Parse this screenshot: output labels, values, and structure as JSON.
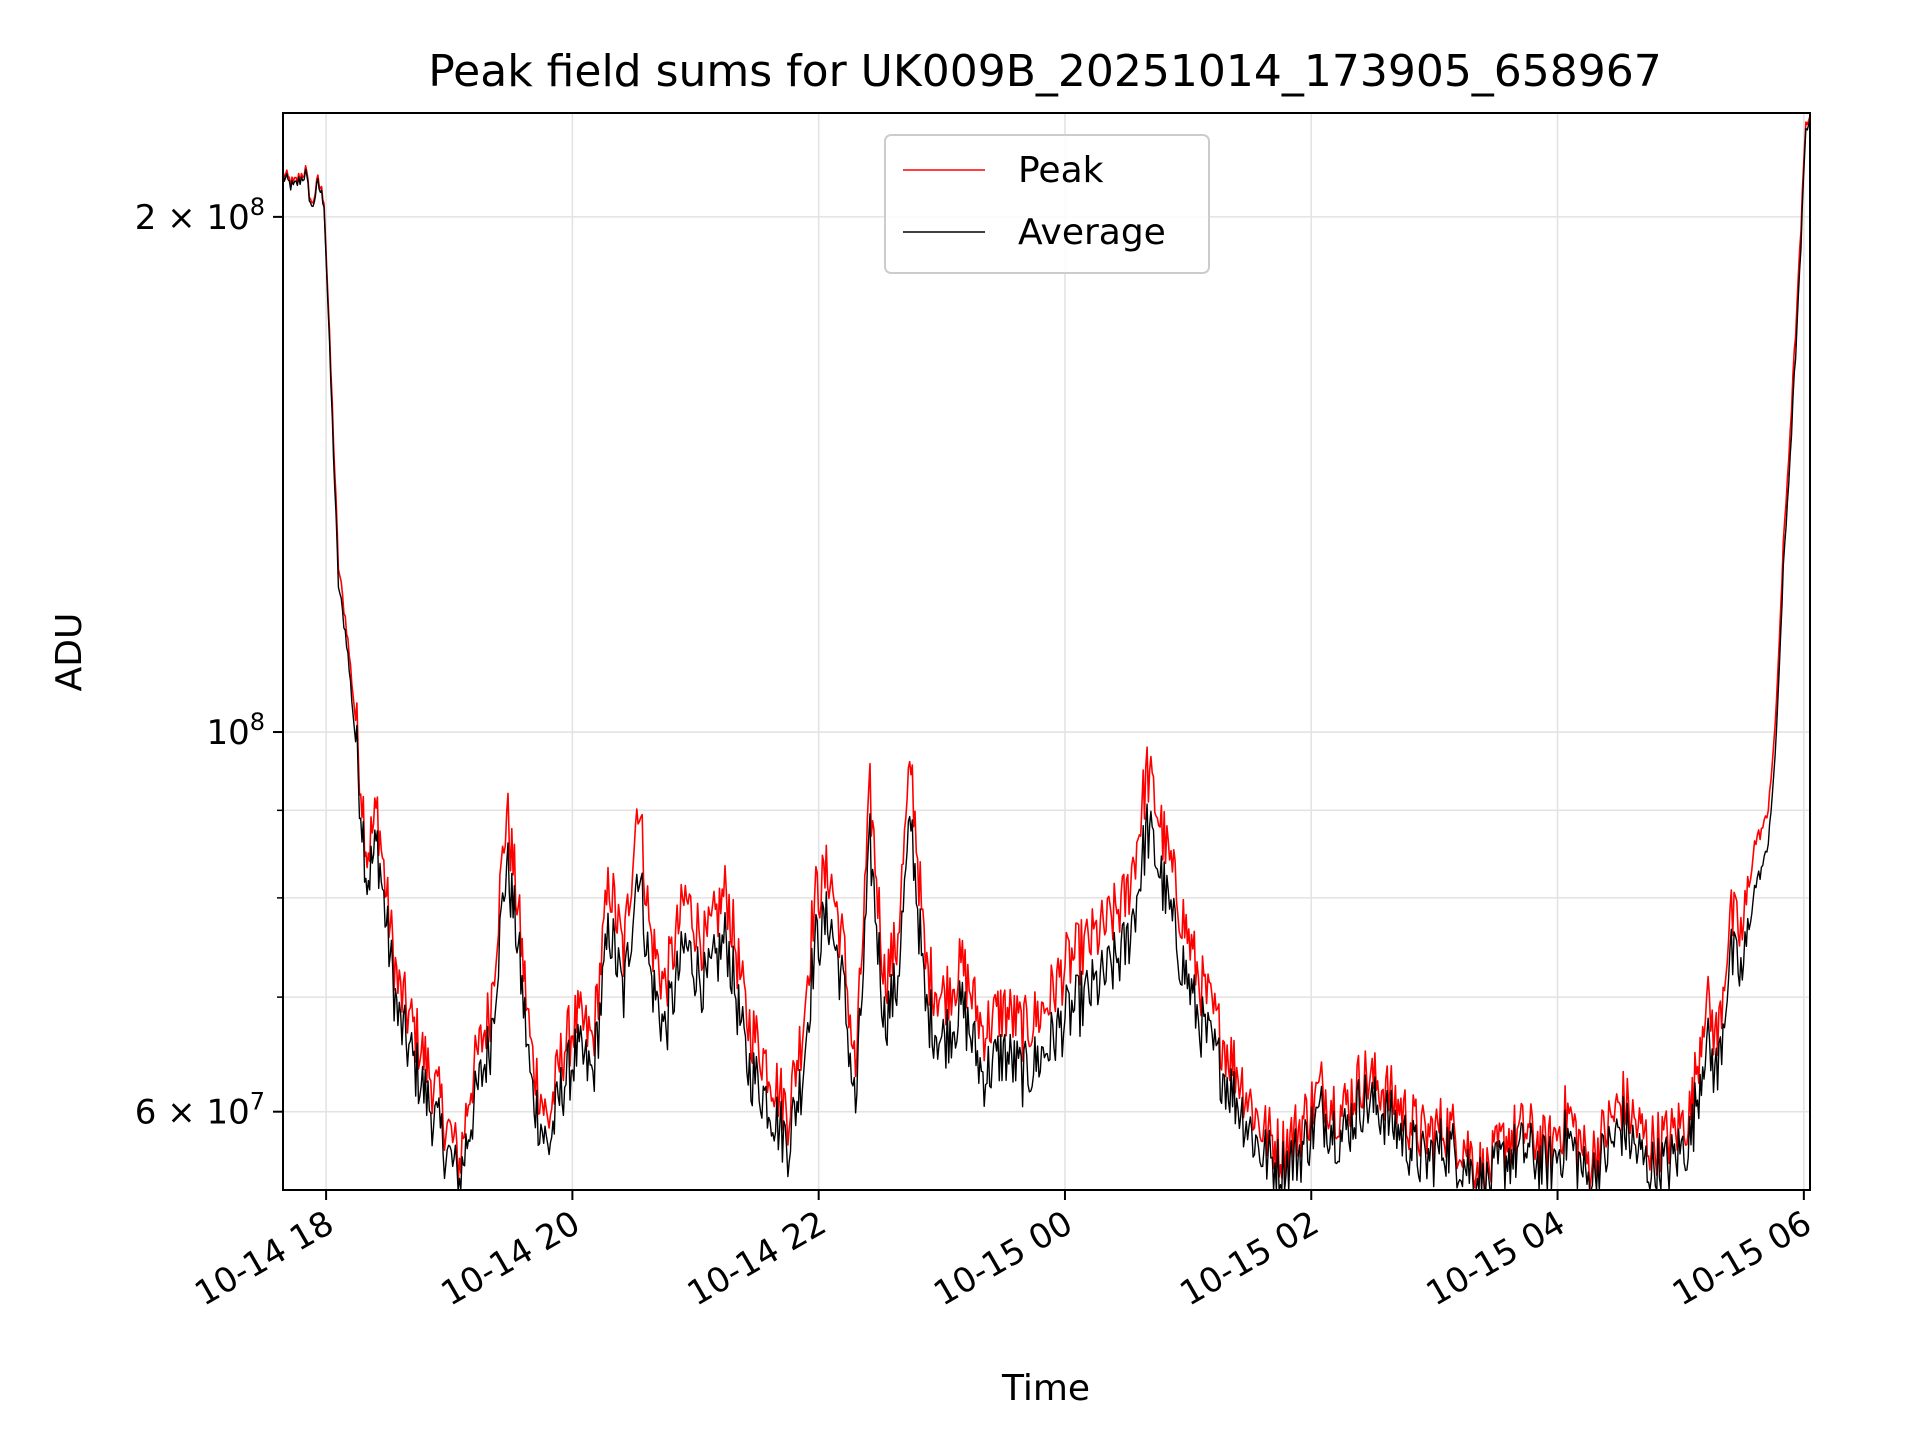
{
  "chart_data": {
    "type": "line",
    "title": "Peak field sums for UK009B_20251014_173905_658967",
    "xlabel": "Time",
    "ylabel": "ADU",
    "x_range": [
      "2025-10-14 17:39",
      "2025-10-15 06:03"
    ],
    "ylim": [
      54000000,
      230000000
    ],
    "yscale": "log",
    "grid": true,
    "legend_position": "upper center",
    "x_ticks": [
      "10-14 18",
      "10-14 20",
      "10-14 22",
      "10-15 00",
      "10-15 02",
      "10-15 04",
      "10-15 06"
    ],
    "y_ticks": [
      {
        "value": 60000000,
        "mantissa": "6",
        "exponent": "7"
      },
      {
        "value": 100000000,
        "mantissa": "",
        "exponent": "8"
      },
      {
        "value": 200000000,
        "mantissa": "2",
        "exponent": "8"
      }
    ],
    "series": [
      {
        "name": "Peak",
        "color": "#ff0000",
        "points": [
          [
            "2025-10-14 17:39",
            212000000
          ],
          [
            "2025-10-14 17:44",
            209000000
          ],
          [
            "2025-10-14 17:50",
            213000000
          ],
          [
            "2025-10-14 17:53",
            203000000
          ],
          [
            "2025-10-14 17:56",
            210000000
          ],
          [
            "2025-10-14 17:59",
            205000000
          ],
          [
            "2025-10-14 18:03",
            155000000
          ],
          [
            "2025-10-14 18:06",
            125000000
          ],
          [
            "2025-10-14 18:10",
            115000000
          ],
          [
            "2025-10-14 18:15",
            100000000
          ],
          [
            "2025-10-14 18:20",
            85000000
          ],
          [
            "2025-10-14 18:25",
            90000000
          ],
          [
            "2025-10-14 18:30",
            79000000
          ],
          [
            "2025-10-14 18:35",
            71000000
          ],
          [
            "2025-10-14 18:45",
            66000000
          ],
          [
            "2025-10-14 18:55",
            61000000
          ],
          [
            "2025-10-14 19:05",
            56000000
          ],
          [
            "2025-10-14 19:10",
            62000000
          ],
          [
            "2025-10-14 19:20",
            69000000
          ],
          [
            "2025-10-14 19:28",
            90000000
          ],
          [
            "2025-10-14 19:33",
            80000000
          ],
          [
            "2025-10-14 19:40",
            65000000
          ],
          [
            "2025-10-14 19:48",
            59000000
          ],
          [
            "2025-10-14 19:55",
            65000000
          ],
          [
            "2025-10-14 20:02",
            68000000
          ],
          [
            "2025-10-14 20:10",
            66000000
          ],
          [
            "2025-10-14 20:18",
            82000000
          ],
          [
            "2025-10-14 20:25",
            74000000
          ],
          [
            "2025-10-14 20:32",
            92000000
          ],
          [
            "2025-10-14 20:38",
            76000000
          ],
          [
            "2025-10-14 20:45",
            71000000
          ],
          [
            "2025-10-14 20:55",
            80000000
          ],
          [
            "2025-10-14 21:05",
            75000000
          ],
          [
            "2025-10-14 21:15",
            81000000
          ],
          [
            "2025-10-14 21:25",
            68000000
          ],
          [
            "2025-10-14 21:35",
            64000000
          ],
          [
            "2025-10-14 21:45",
            60000000
          ],
          [
            "2025-10-14 21:52",
            67000000
          ],
          [
            "2025-10-14 21:58",
            80000000
          ],
          [
            "2025-10-14 22:05",
            83000000
          ],
          [
            "2025-10-14 22:12",
            75000000
          ],
          [
            "2025-10-14 22:18",
            63000000
          ],
          [
            "2025-10-14 22:25",
            92000000
          ],
          [
            "2025-10-14 22:32",
            72000000
          ],
          [
            "2025-10-14 22:38",
            75000000
          ],
          [
            "2025-10-14 22:45",
            96000000
          ],
          [
            "2025-10-14 22:52",
            73000000
          ],
          [
            "2025-10-14 23:00",
            70000000
          ],
          [
            "2025-10-14 23:10",
            73000000
          ],
          [
            "2025-10-14 23:20",
            67000000
          ],
          [
            "2025-10-14 23:30",
            69000000
          ],
          [
            "2025-10-14 23:40",
            67000000
          ],
          [
            "2025-10-14 23:50",
            69000000
          ],
          [
            "2025-10-15 00:00",
            73000000
          ],
          [
            "2025-10-15 00:10",
            75000000
          ],
          [
            "2025-10-15 00:20",
            77000000
          ],
          [
            "2025-10-15 00:30",
            80000000
          ],
          [
            "2025-10-15 00:35",
            86000000
          ],
          [
            "2025-10-15 00:40",
            95000000
          ],
          [
            "2025-10-15 00:45",
            90000000
          ],
          [
            "2025-10-15 00:55",
            80000000
          ],
          [
            "2025-10-15 01:05",
            72000000
          ],
          [
            "2025-10-15 01:15",
            67000000
          ],
          [
            "2025-10-15 01:25",
            63000000
          ],
          [
            "2025-10-15 01:35",
            59000000
          ],
          [
            "2025-10-15 01:45",
            57000000
          ],
          [
            "2025-10-15 01:55",
            59000000
          ],
          [
            "2025-10-15 02:05",
            62000000
          ],
          [
            "2025-10-15 02:15",
            60000000
          ],
          [
            "2025-10-15 02:25",
            63000000
          ],
          [
            "2025-10-15 02:35",
            62000000
          ],
          [
            "2025-10-15 02:45",
            60000000
          ],
          [
            "2025-10-15 02:55",
            58000000
          ],
          [
            "2025-10-15 03:05",
            59000000
          ],
          [
            "2025-10-15 03:15",
            57500000
          ],
          [
            "2025-10-15 03:25",
            55000000
          ],
          [
            "2025-10-15 03:35",
            58000000
          ],
          [
            "2025-10-15 03:45",
            58500000
          ],
          [
            "2025-10-15 03:55",
            57000000
          ],
          [
            "2025-10-15 04:05",
            60000000
          ],
          [
            "2025-10-15 04:15",
            56000000
          ],
          [
            "2025-10-15 04:25",
            59000000
          ],
          [
            "2025-10-15 04:32",
            61000000
          ],
          [
            "2025-10-15 04:38",
            59000000
          ],
          [
            "2025-10-15 04:45",
            57500000
          ],
          [
            "2025-10-15 04:55",
            58000000
          ],
          [
            "2025-10-15 05:05",
            60000000
          ],
          [
            "2025-10-15 05:12",
            70000000
          ],
          [
            "2025-10-15 05:18",
            66000000
          ],
          [
            "2025-10-15 05:24",
            78000000
          ],
          [
            "2025-10-15 05:30",
            76000000
          ],
          [
            "2025-10-15 05:36",
            86000000
          ],
          [
            "2025-10-15 05:42",
            89000000
          ],
          [
            "2025-10-15 05:46",
            100000000
          ],
          [
            "2025-10-15 05:50",
            128000000
          ],
          [
            "2025-10-15 05:54",
            155000000
          ],
          [
            "2025-10-15 05:58",
            190000000
          ],
          [
            "2025-10-15 06:01",
            228000000
          ],
          [
            "2025-10-15 06:03",
            229000000
          ]
        ]
      },
      {
        "name": "Average",
        "color": "#000000",
        "points": [
          [
            "2025-10-14 17:39",
            211000000
          ],
          [
            "2025-10-14 17:44",
            208000000
          ],
          [
            "2025-10-14 17:50",
            212000000
          ],
          [
            "2025-10-14 17:53",
            202000000
          ],
          [
            "2025-10-14 17:56",
            209000000
          ],
          [
            "2025-10-14 17:59",
            204000000
          ],
          [
            "2025-10-14 18:03",
            152000000
          ],
          [
            "2025-10-14 18:06",
            122000000
          ],
          [
            "2025-10-14 18:10",
            113000000
          ],
          [
            "2025-10-14 18:15",
            97000000
          ],
          [
            "2025-10-14 18:20",
            82000000
          ],
          [
            "2025-10-14 18:25",
            86000000
          ],
          [
            "2025-10-14 18:30",
            76000000
          ],
          [
            "2025-10-14 18:35",
            68000000
          ],
          [
            "2025-10-14 18:45",
            63000000
          ],
          [
            "2025-10-14 18:55",
            58500000
          ],
          [
            "2025-10-14 19:05",
            54500000
          ],
          [
            "2025-10-14 19:10",
            59000000
          ],
          [
            "2025-10-14 19:20",
            66000000
          ],
          [
            "2025-10-14 19:28",
            84000000
          ],
          [
            "2025-10-14 19:33",
            76000000
          ],
          [
            "2025-10-14 19:40",
            62000000
          ],
          [
            "2025-10-14 19:48",
            57000000
          ],
          [
            "2025-10-14 19:55",
            62000000
          ],
          [
            "2025-10-14 20:02",
            65000000
          ],
          [
            "2025-10-14 20:10",
            63000000
          ],
          [
            "2025-10-14 20:18",
            77000000
          ],
          [
            "2025-10-14 20:25",
            70000000
          ],
          [
            "2025-10-14 20:32",
            84000000
          ],
          [
            "2025-10-14 20:38",
            72000000
          ],
          [
            "2025-10-14 20:45",
            67000000
          ],
          [
            "2025-10-14 20:55",
            75000000
          ],
          [
            "2025-10-14 21:05",
            71000000
          ],
          [
            "2025-10-14 21:15",
            76000000
          ],
          [
            "2025-10-14 21:25",
            64000000
          ],
          [
            "2025-10-14 21:35",
            61000000
          ],
          [
            "2025-10-14 21:45",
            57500000
          ],
          [
            "2025-10-14 21:52",
            63000000
          ],
          [
            "2025-10-14 21:58",
            75000000
          ],
          [
            "2025-10-14 22:05",
            78000000
          ],
          [
            "2025-10-14 22:12",
            71000000
          ],
          [
            "2025-10-14 22:18",
            60000000
          ],
          [
            "2025-10-14 22:25",
            86000000
          ],
          [
            "2025-10-14 22:32",
            68000000
          ],
          [
            "2025-10-14 22:38",
            71000000
          ],
          [
            "2025-10-14 22:45",
            89000000
          ],
          [
            "2025-10-14 22:52",
            69000000
          ],
          [
            "2025-10-14 23:00",
            66000000
          ],
          [
            "2025-10-14 23:10",
            69000000
          ],
          [
            "2025-10-14 23:20",
            63000000
          ],
          [
            "2025-10-14 23:30",
            65000000
          ],
          [
            "2025-10-14 23:40",
            63000000
          ],
          [
            "2025-10-14 23:50",
            65000000
          ],
          [
            "2025-10-15 00:00",
            68000000
          ],
          [
            "2025-10-15 00:10",
            70000000
          ],
          [
            "2025-10-15 00:20",
            72000000
          ],
          [
            "2025-10-15 00:30",
            75000000
          ],
          [
            "2025-10-15 00:35",
            80000000
          ],
          [
            "2025-10-15 00:40",
            88000000
          ],
          [
            "2025-10-15 00:45",
            84000000
          ],
          [
            "2025-10-15 00:55",
            75000000
          ],
          [
            "2025-10-15 01:05",
            68000000
          ],
          [
            "2025-10-15 01:15",
            64000000
          ],
          [
            "2025-10-15 01:25",
            60500000
          ],
          [
            "2025-10-15 01:35",
            57000000
          ],
          [
            "2025-10-15 01:45",
            55500000
          ],
          [
            "2025-10-15 01:55",
            57000000
          ],
          [
            "2025-10-15 02:05",
            60000000
          ],
          [
            "2025-10-15 02:15",
            58000000
          ],
          [
            "2025-10-15 02:25",
            61000000
          ],
          [
            "2025-10-15 02:35",
            60000000
          ],
          [
            "2025-10-15 02:45",
            58000000
          ],
          [
            "2025-10-15 02:55",
            56000000
          ],
          [
            "2025-10-15 03:05",
            57500000
          ],
          [
            "2025-10-15 03:15",
            56000000
          ],
          [
            "2025-10-15 03:25",
            54000000
          ],
          [
            "2025-10-15 03:35",
            56500000
          ],
          [
            "2025-10-15 03:45",
            57000000
          ],
          [
            "2025-10-15 03:55",
            55500000
          ],
          [
            "2025-10-15 04:05",
            58000000
          ],
          [
            "2025-10-15 04:15",
            54500000
          ],
          [
            "2025-10-15 04:25",
            57000000
          ],
          [
            "2025-10-15 04:32",
            59000000
          ],
          [
            "2025-10-15 04:38",
            57000000
          ],
          [
            "2025-10-15 04:45",
            55500000
          ],
          [
            "2025-10-15 04:55",
            56000000
          ],
          [
            "2025-10-15 05:05",
            58000000
          ],
          [
            "2025-10-15 05:12",
            66000000
          ],
          [
            "2025-10-15 05:18",
            63000000
          ],
          [
            "2025-10-15 05:24",
            74000000
          ],
          [
            "2025-10-15 05:30",
            72000000
          ],
          [
            "2025-10-15 05:36",
            81000000
          ],
          [
            "2025-10-15 05:42",
            85000000
          ],
          [
            "2025-10-15 05:46",
            96000000
          ],
          [
            "2025-10-15 05:50",
            124000000
          ],
          [
            "2025-10-15 05:54",
            150000000
          ],
          [
            "2025-10-15 05:58",
            185000000
          ],
          [
            "2025-10-15 06:01",
            226000000
          ],
          [
            "2025-10-15 06:03",
            228000000
          ]
        ]
      }
    ]
  }
}
